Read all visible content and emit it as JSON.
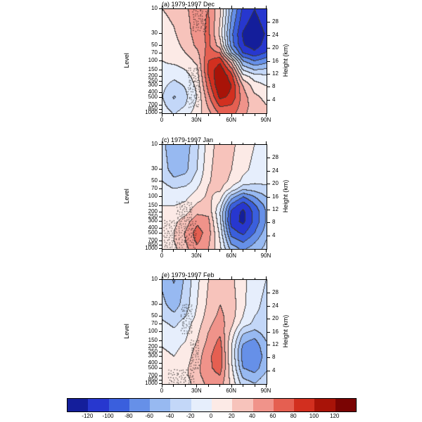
{
  "chart_data": {
    "type": "heatmap",
    "description": "Three latitude-pressure filled contour cross sections (Dec, Jan, Feb climatology 1979-1997) with stippling and a shared diverging colorbar",
    "contour_interval": 20,
    "x_lat": [
      0,
      10,
      20,
      30,
      40,
      50,
      60,
      70,
      80,
      90
    ],
    "y_levels_hPa": [
      10,
      30,
      50,
      70,
      100,
      150,
      200,
      300,
      500,
      700,
      1000
    ],
    "axes": {
      "left_label": "Level",
      "right_label": "Height (km)",
      "level_ticks": [
        10,
        30,
        50,
        70,
        100,
        150,
        200,
        250,
        300,
        400,
        500,
        700,
        850,
        1000
      ],
      "height_ticks_km": [
        4,
        8,
        12,
        16,
        20,
        24,
        28
      ],
      "lat_ticks": [
        "0",
        "30N",
        "60N",
        "90N"
      ]
    },
    "colorbar": {
      "boundaries": [
        -120,
        -100,
        -80,
        -60,
        -40,
        -20,
        0,
        20,
        40,
        60,
        80,
        100,
        120
      ],
      "tick_labels": [
        "-120",
        "-100",
        "-80",
        "-60",
        "-40",
        "-20",
        "0",
        "20",
        "40",
        "60",
        "80",
        "100",
        "120"
      ],
      "colors": [
        "#141e9b",
        "#2737cf",
        "#3a5fdd",
        "#6690e8",
        "#97b9f1",
        "#c3d7f8",
        "#e6eefc",
        "#fceae6",
        "#f7c3bb",
        "#f0938a",
        "#e55f51",
        "#d22f1f",
        "#a81308",
        "#7a0403"
      ]
    },
    "panels": [
      {
        "label": "(a) 1979-1997 Dec",
        "values": [
          [
            20,
            25,
            35,
            55,
            60,
            25,
            -55,
            -105,
            -120,
            -105
          ],
          [
            12,
            18,
            30,
            50,
            65,
            15,
            -75,
            -122,
            -135,
            -118
          ],
          [
            8,
            14,
            25,
            45,
            65,
            30,
            -70,
            -118,
            -130,
            -112
          ],
          [
            5,
            10,
            20,
            35,
            70,
            60,
            -40,
            -100,
            -115,
            -98
          ],
          [
            0,
            5,
            10,
            25,
            80,
            95,
            30,
            -60,
            -80,
            -68
          ],
          [
            -5,
            -8,
            0,
            15,
            85,
            115,
            70,
            -20,
            -40,
            -35
          ],
          [
            -10,
            -15,
            -8,
            10,
            80,
            120,
            90,
            10,
            -10,
            -15
          ],
          [
            -15,
            -28,
            -18,
            5,
            70,
            120,
            100,
            40,
            10,
            0
          ],
          [
            -20,
            -42,
            -25,
            0,
            55,
            105,
            95,
            50,
            25,
            15
          ],
          [
            -15,
            -35,
            -20,
            5,
            45,
            85,
            80,
            50,
            30,
            20
          ],
          [
            -10,
            -22,
            -10,
            10,
            35,
            65,
            70,
            45,
            30,
            25
          ]
        ],
        "stipple_regions": [
          {
            "lat": [
              27,
              38
            ],
            "hPa": [
              10,
              28
            ]
          },
          {
            "lat": [
              23,
              33
            ],
            "hPa": [
              140,
              780
            ]
          }
        ]
      },
      {
        "label": "(c) 1979-1997 Jan",
        "values": [
          [
            -35,
            -55,
            -50,
            -25,
            10,
            30,
            25,
            10,
            0,
            -5
          ],
          [
            -30,
            -50,
            -45,
            -20,
            15,
            32,
            20,
            5,
            -5,
            -10
          ],
          [
            -20,
            -35,
            -30,
            -10,
            18,
            30,
            15,
            -5,
            -15,
            -15
          ],
          [
            -10,
            -20,
            -15,
            0,
            22,
            25,
            -5,
            -35,
            -30,
            -25
          ],
          [
            -5,
            -10,
            -5,
            10,
            25,
            10,
            -50,
            -80,
            -60,
            -40
          ],
          [
            0,
            0,
            5,
            25,
            30,
            -10,
            -90,
            -115,
            -85,
            -55
          ],
          [
            5,
            5,
            15,
            35,
            35,
            -20,
            -105,
            -125,
            -95,
            -60
          ],
          [
            10,
            15,
            30,
            55,
            45,
            -15,
            -110,
            -125,
            -95,
            -60
          ],
          [
            10,
            20,
            42,
            70,
            50,
            -5,
            -90,
            -105,
            -80,
            -50
          ],
          [
            10,
            20,
            40,
            65,
            45,
            0,
            -70,
            -85,
            -65,
            -40
          ],
          [
            5,
            15,
            35,
            55,
            40,
            5,
            -50,
            -65,
            -50,
            -35
          ]
        ],
        "stipple_regions": [
          {
            "lat": [
              13,
              26
            ],
            "hPa": [
              130,
              300
            ]
          },
          {
            "lat": [
              2,
              31
            ],
            "hPa": [
              300,
              1000
            ]
          }
        ]
      },
      {
        "label": "(e) 1979-1997 Feb",
        "values": [
          [
            -45,
            -62,
            -35,
            -5,
            20,
            35,
            25,
            5,
            -10,
            -20
          ],
          [
            -35,
            -50,
            -30,
            0,
            25,
            40,
            30,
            5,
            -15,
            -25
          ],
          [
            -25,
            -35,
            -20,
            5,
            30,
            45,
            30,
            0,
            -20,
            -25
          ],
          [
            -15,
            -25,
            -10,
            10,
            35,
            50,
            25,
            -10,
            -25,
            -25
          ],
          [
            -10,
            -15,
            -5,
            15,
            40,
            55,
            15,
            -35,
            -45,
            -30
          ],
          [
            -5,
            -10,
            0,
            20,
            45,
            65,
            5,
            -55,
            -65,
            -40
          ],
          [
            0,
            -5,
            5,
            25,
            50,
            70,
            0,
            -65,
            -75,
            -45
          ],
          [
            5,
            0,
            10,
            30,
            55,
            75,
            0,
            -70,
            -80,
            -50
          ],
          [
            5,
            5,
            15,
            35,
            55,
            70,
            5,
            -60,
            -70,
            -45
          ],
          [
            5,
            10,
            15,
            35,
            50,
            60,
            10,
            -45,
            -55,
            -35
          ],
          [
            0,
            5,
            10,
            30,
            45,
            50,
            15,
            -30,
            -40,
            -25
          ]
        ],
        "stipple_regions": [
          {
            "lat": [
              17,
              27
            ],
            "hPa": [
              30,
              110
            ]
          },
          {
            "lat": [
              25,
              32
            ],
            "hPa": [
              150,
              560
            ]
          },
          {
            "lat": [
              6,
              28
            ],
            "hPa": [
              560,
              1000
            ]
          }
        ]
      }
    ]
  }
}
